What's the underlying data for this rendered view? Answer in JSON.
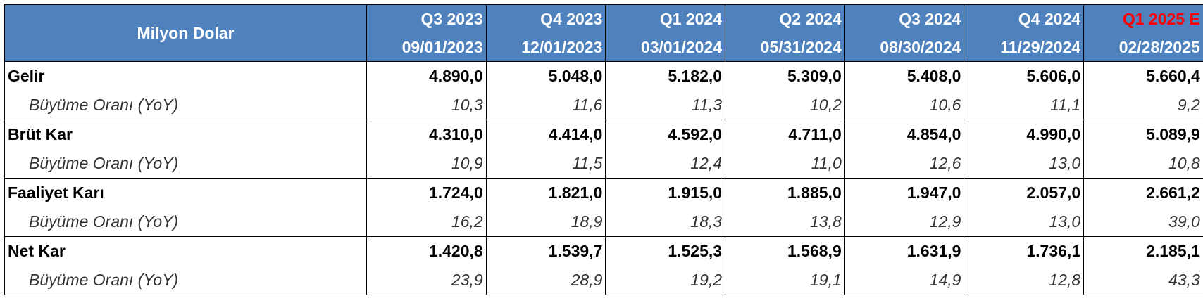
{
  "header": {
    "label": "Milyon Dolar",
    "periods": [
      {
        "period": "Q3 2023",
        "date": "09/01/2023"
      },
      {
        "period": "Q4 2023",
        "date": "12/01/2023"
      },
      {
        "period": "Q1 2024",
        "date": "03/01/2024"
      },
      {
        "period": "Q2 2024",
        "date": "05/31/2024"
      },
      {
        "period": "Q3 2024",
        "date": "08/30/2024"
      },
      {
        "period": "Q4 2024",
        "date": "11/29/2024"
      },
      {
        "period": "Q1 2025 E",
        "date": "02/28/2025"
      }
    ],
    "estimate_color": "#ff0000",
    "header_bg": "#4f81bd"
  },
  "rows": [
    {
      "label": "Gelir",
      "values": [
        "4.890,0",
        "5.048,0",
        "5.182,0",
        "5.309,0",
        "5.408,0",
        "5.606,0",
        "5.660,4"
      ],
      "growth_label": "Büyüme Oranı (YoY)",
      "growth": [
        "10,3",
        "11,6",
        "11,3",
        "10,2",
        "10,6",
        "11,1",
        "9,2"
      ]
    },
    {
      "label": "Brüt Kar",
      "values": [
        "4.310,0",
        "4.414,0",
        "4.592,0",
        "4.711,0",
        "4.854,0",
        "4.990,0",
        "5.089,9"
      ],
      "growth_label": "Büyüme Oranı (YoY)",
      "growth": [
        "10,9",
        "11,5",
        "12,4",
        "11,0",
        "12,6",
        "13,0",
        "10,8"
      ]
    },
    {
      "label": "Faaliyet Karı",
      "values": [
        "1.724,0",
        "1.821,0",
        "1.915,0",
        "1.885,0",
        "1.947,0",
        "2.057,0",
        "2.661,2"
      ],
      "growth_label": "Büyüme Oranı (YoY)",
      "growth": [
        "16,2",
        "18,9",
        "18,3",
        "13,8",
        "12,9",
        "13,0",
        "39,0"
      ]
    },
    {
      "label": "Net Kar",
      "values": [
        "1.420,8",
        "1.539,7",
        "1.525,3",
        "1.568,9",
        "1.631,9",
        "1.736,1",
        "2.185,1"
      ],
      "growth_label": "Büyüme Oranı (YoY)",
      "growth": [
        "23,9",
        "28,9",
        "19,2",
        "19,1",
        "14,9",
        "12,8",
        "43,3"
      ]
    }
  ]
}
